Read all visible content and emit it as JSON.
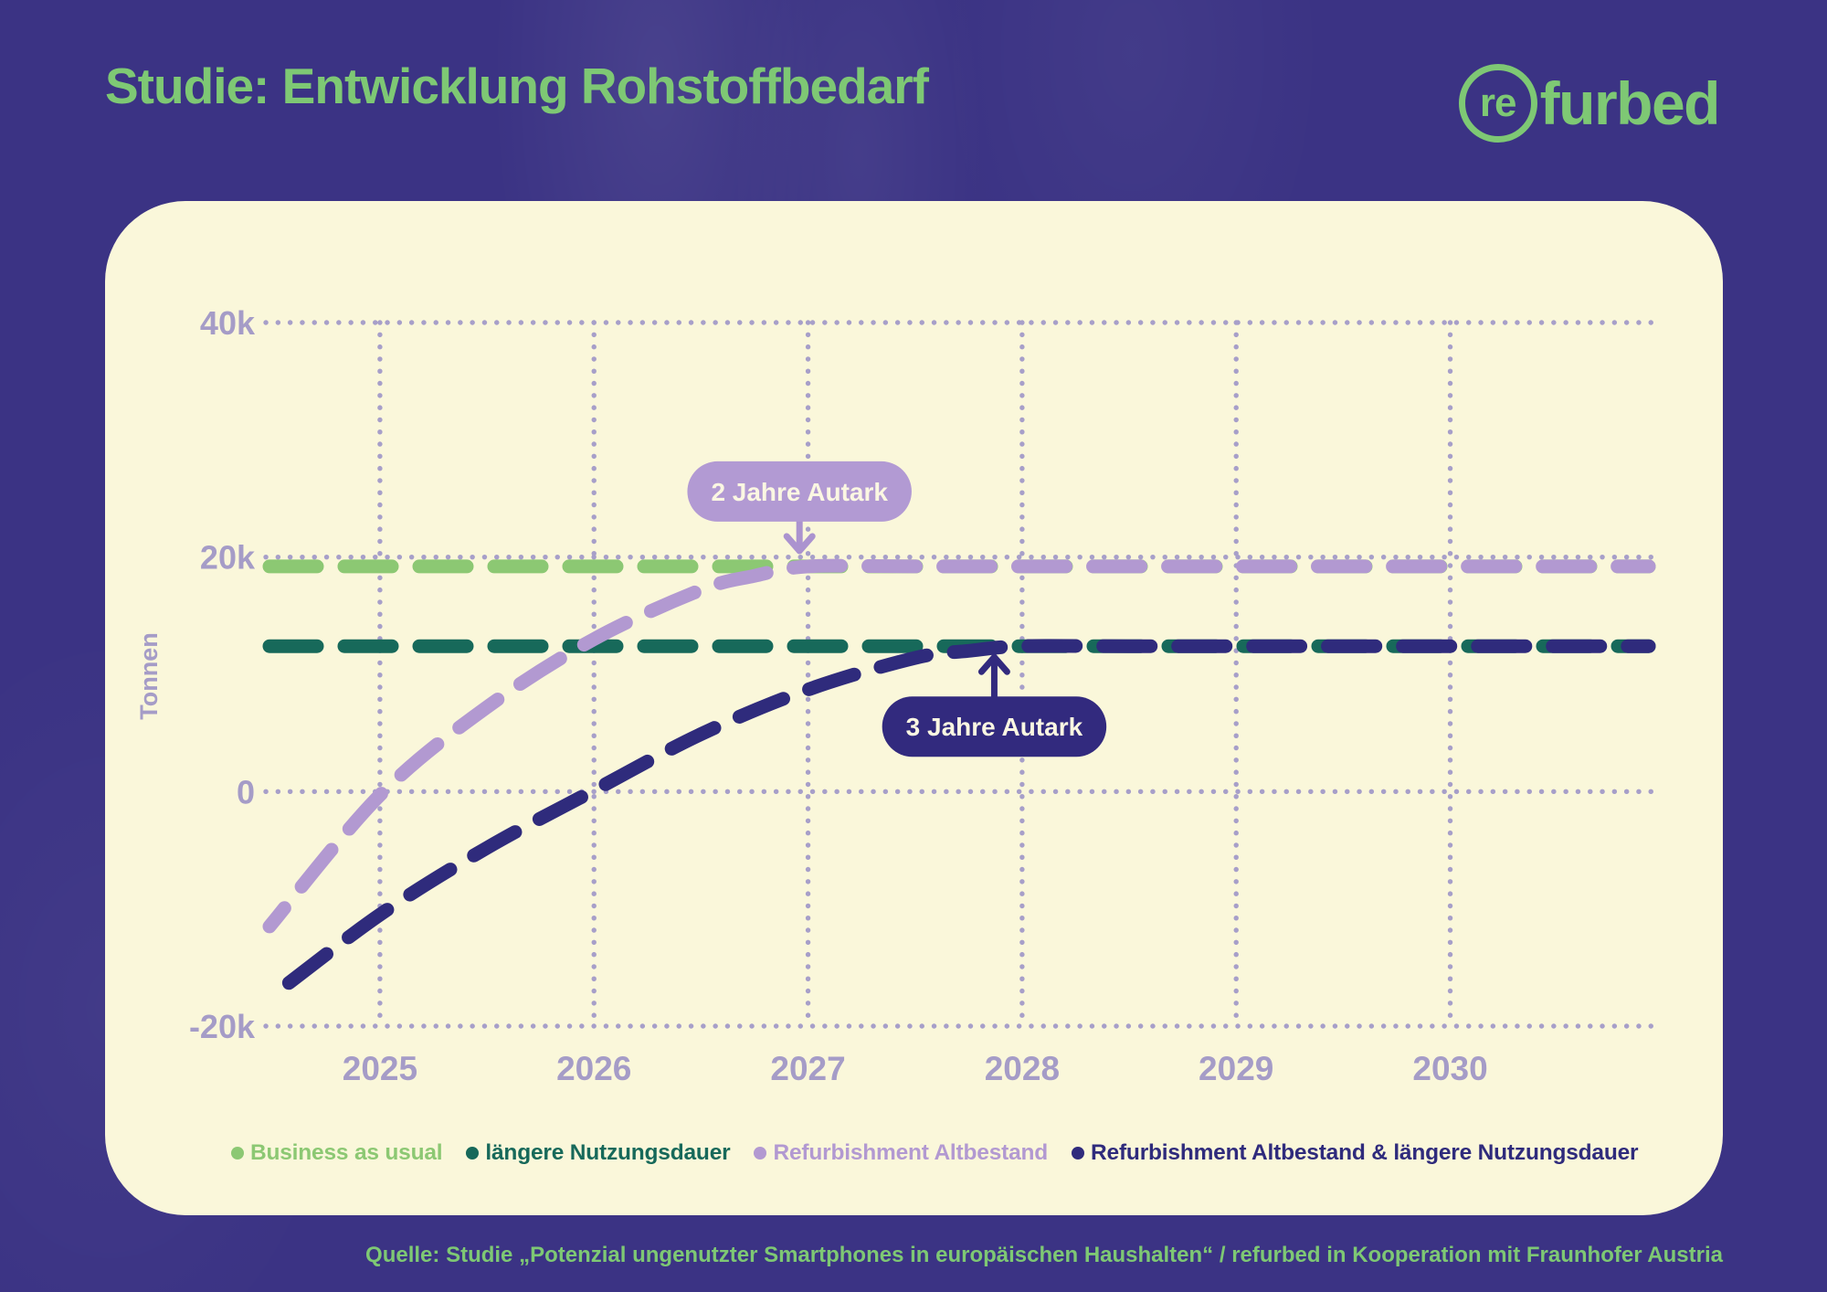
{
  "header": {
    "title": "Studie: Entwicklung Rohstoffbedarf",
    "logo_re": "re",
    "logo_suffix": "furbed"
  },
  "footer": {
    "source": "Quelle: Studie „Potenzial ungenutzter Smartphones in europäischen Haushalten“ / refurbed in Kooperation mit Fraunhofer Austria"
  },
  "colors": {
    "background": "#3b3384",
    "card": "#faf7da",
    "title": "#7ec874",
    "grid": "#a79fc9",
    "axis_text": "#a59cc7",
    "source_text": "#7ec874"
  },
  "chart_data": {
    "type": "line",
    "title": "",
    "xlabel": "",
    "ylabel": "Tonnen",
    "grid": true,
    "legend_position": "bottom",
    "x_range": [
      2024.484,
      2030.928
    ],
    "y_range": [
      -20000,
      40000
    ],
    "x_ticks": [
      {
        "value": 2025,
        "label": "2025"
      },
      {
        "value": 2026,
        "label": "2026"
      },
      {
        "value": 2027,
        "label": "2027"
      },
      {
        "value": 2028,
        "label": "2028"
      },
      {
        "value": 2029,
        "label": "2029"
      },
      {
        "value": 2030,
        "label": "2030"
      }
    ],
    "y_ticks": [
      {
        "value": 40000,
        "label": "40k"
      },
      {
        "value": 20000,
        "label": "20k"
      },
      {
        "value": 0,
        "label": "0"
      },
      {
        "value": -20000,
        "label": "-20k"
      }
    ],
    "series": [
      {
        "name": "Business as usual",
        "color": "#8cc873",
        "line_style": "dashed",
        "dash_offset": 0,
        "points": [
          [
            2024.484,
            19200
          ],
          [
            2030.928,
            19200
          ]
        ]
      },
      {
        "name": "längere Nutzungsdauer",
        "color": "#17695a",
        "line_style": "dashed",
        "dash_offset": 0,
        "points": [
          [
            2024.484,
            12400
          ],
          [
            2030.928,
            12400
          ]
        ]
      },
      {
        "name": "Refurbishment Altbestand",
        "color": "#b299d1",
        "line_style": "dashed",
        "dash_offset": 26,
        "points": [
          [
            2024.484,
            -11500
          ],
          [
            2025,
            -300
          ],
          [
            2025.5,
            7200
          ],
          [
            2026,
            13000
          ],
          [
            2026.5,
            17200
          ],
          [
            2026.75,
            18400
          ],
          [
            2027,
            19200
          ],
          [
            2027.5,
            19200
          ],
          [
            2028.5,
            19200
          ],
          [
            2030.928,
            19200
          ]
        ]
      },
      {
        "name": "Refurbishment Altbestand & längere Nutzungsdauer",
        "color": "#2f2b7c",
        "line_style": "dashed",
        "dash_offset": 55,
        "points": [
          [
            2024.484,
            -17600
          ],
          [
            2025,
            -10500
          ],
          [
            2025.5,
            -4800
          ],
          [
            2026,
            100
          ],
          [
            2026.5,
            4900
          ],
          [
            2027,
            8700
          ],
          [
            2027.5,
            11400
          ],
          [
            2027.75,
            12000
          ],
          [
            2028,
            12400
          ],
          [
            2028.5,
            12400
          ],
          [
            2029.5,
            12400
          ],
          [
            2030.928,
            12400
          ]
        ]
      }
    ],
    "annotations": [
      {
        "label": "2 Jahre Autark",
        "x": 2026.96,
        "y": 19200,
        "direction": "down",
        "pill_color": "#b29ad3",
        "arrow_color": "#ab93cf",
        "text_color": "#fbf7e2"
      },
      {
        "label": "3 Jahre Autark",
        "x": 2027.87,
        "y": 12400,
        "direction": "up",
        "pill_color": "#322a7e",
        "arrow_color": "#322a7e",
        "text_color": "#fbf7e2"
      }
    ]
  }
}
